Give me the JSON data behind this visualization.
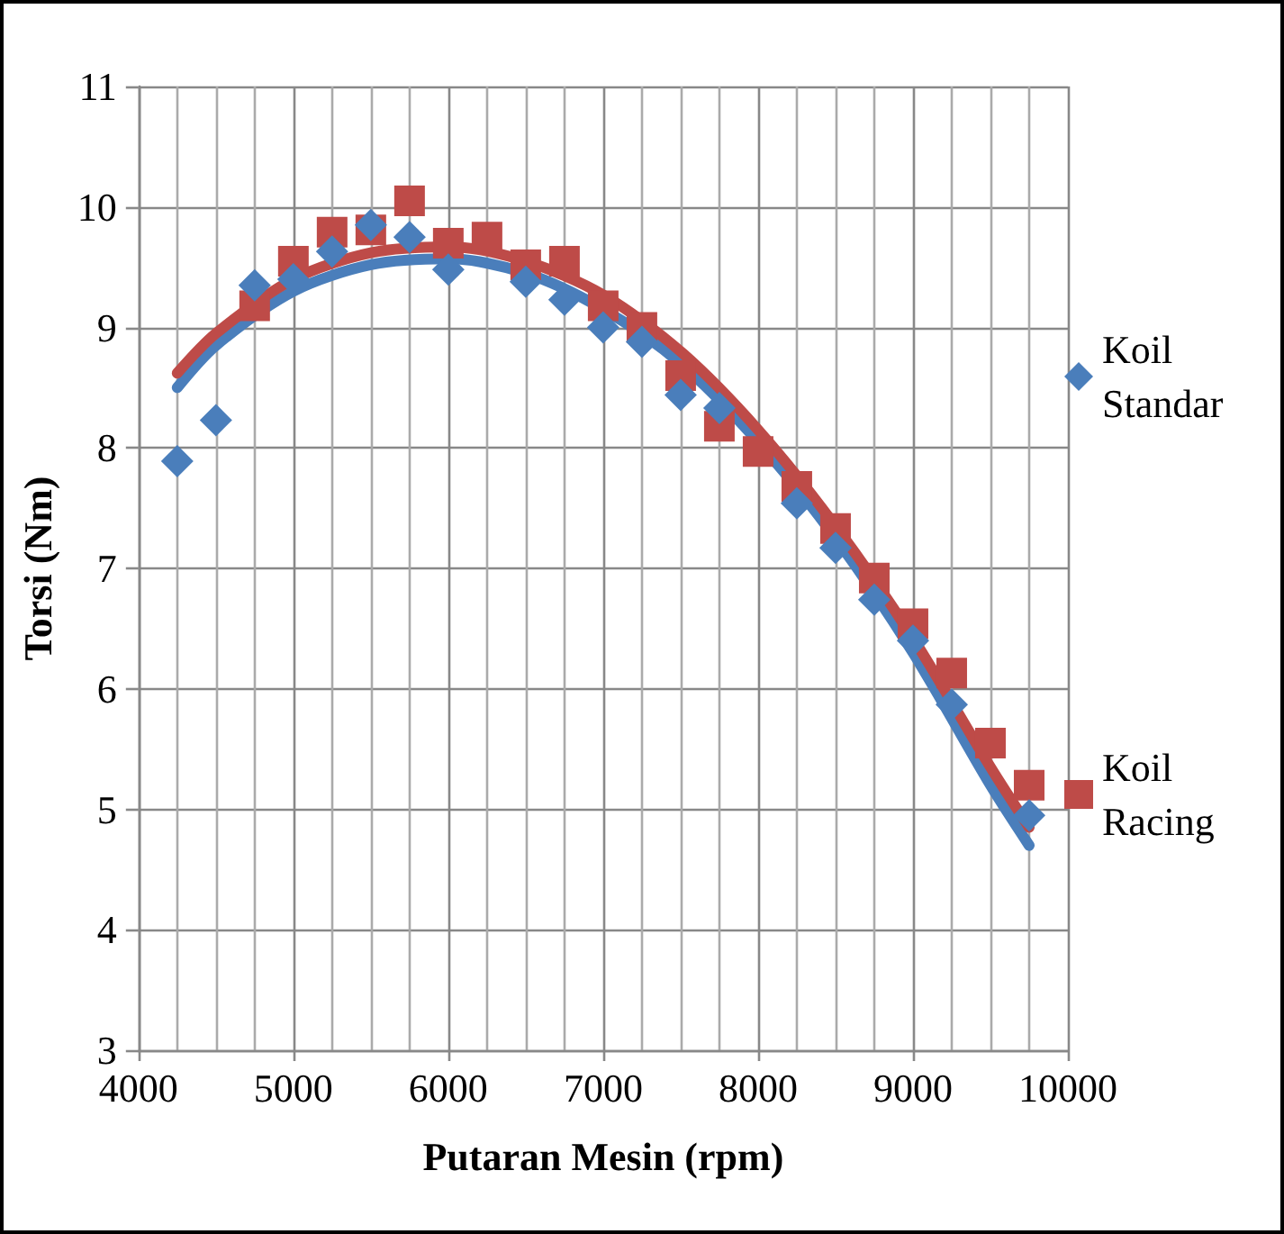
{
  "chart_data": {
    "type": "scatter",
    "xlabel": "Putaran Mesin (rpm)",
    "ylabel": "Torsi (Nm)",
    "xlim": [
      4000,
      10000
    ],
    "xticks": [
      4000,
      5000,
      6000,
      7000,
      8000,
      9000,
      10000
    ],
    "ylim": [
      3,
      11
    ],
    "yticks": [
      3,
      4,
      5,
      6,
      7,
      8,
      9,
      10,
      11
    ],
    "grid": true,
    "legend": "right",
    "series": [
      {
        "name": "Koil Standar",
        "color": "#4a7ebb",
        "marker": "diamond",
        "x": [
          4250,
          4500,
          4750,
          5000,
          5250,
          5500,
          5750,
          6000,
          6500,
          6750,
          7000,
          7250,
          7500,
          7750,
          8250,
          8500,
          8750,
          9000,
          9250,
          9750
        ],
        "values": [
          7.89,
          8.23,
          9.35,
          9.4,
          9.63,
          9.85,
          9.75,
          9.48,
          9.38,
          9.23,
          9.0,
          8.88,
          8.44,
          8.33,
          7.54,
          7.17,
          6.74,
          6.4,
          5.87,
          4.95
        ]
      },
      {
        "name": "Koil Racing",
        "color": "#be4b48",
        "marker": "square",
        "x": [
          4750,
          5000,
          5250,
          5500,
          5750,
          6000,
          6250,
          6500,
          6750,
          7000,
          7250,
          7500,
          7750,
          8000,
          8250,
          8500,
          8750,
          9000,
          9250,
          9500,
          9750
        ],
        "values": [
          9.18,
          9.55,
          9.79,
          9.81,
          10.05,
          9.7,
          9.75,
          9.52,
          9.55,
          9.18,
          9.0,
          8.6,
          8.18,
          7.97,
          7.68,
          7.33,
          6.92,
          6.54,
          6.13,
          5.55,
          5.2
        ]
      },
      {
        "type": "line",
        "color": "#4a7ebb",
        "marker": "none",
        "x": [
          4250,
          4500,
          5000,
          5500,
          6000,
          6500,
          7000,
          7500,
          8000,
          8500,
          9000,
          9500,
          9750
        ],
        "values": [
          8.5,
          8.85,
          9.3,
          9.52,
          9.57,
          9.45,
          9.15,
          8.7,
          8.05,
          7.25,
          6.3,
          5.2,
          4.7
        ]
      },
      {
        "type": "line",
        "color": "#be4b48",
        "marker": "none",
        "x": [
          4250,
          4500,
          5000,
          5500,
          6000,
          6500,
          7000,
          7500,
          8000,
          8500,
          9000,
          9500,
          9750
        ],
        "values": [
          8.62,
          8.95,
          9.4,
          9.62,
          9.67,
          9.55,
          9.27,
          8.8,
          8.15,
          7.35,
          6.42,
          5.35,
          4.85
        ]
      }
    ]
  }
}
